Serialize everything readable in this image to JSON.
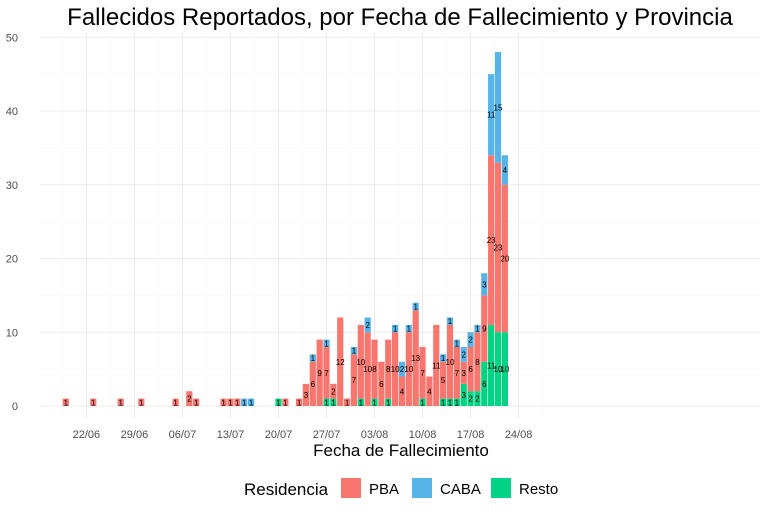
{
  "chart_data": {
    "type": "bar",
    "stacked": true,
    "title": "Fallecidos Reportados, por Fecha de Fallecimiento y Provincia",
    "xlabel": "Fecha de Fallecimiento",
    "ylabel": "",
    "ylim": [
      0,
      50
    ],
    "yticks": [
      "0",
      "10",
      "20",
      "30",
      "40",
      "50"
    ],
    "xticks": [
      {
        "day": 4,
        "label": "22/06"
      },
      {
        "day": 11,
        "label": "29/06"
      },
      {
        "day": 18,
        "label": "06/07"
      },
      {
        "day": 25,
        "label": "13/07"
      },
      {
        "day": 32,
        "label": "20/07"
      },
      {
        "day": 39,
        "label": "27/07"
      },
      {
        "day": 46,
        "label": "03/08"
      },
      {
        "day": 53,
        "label": "10/08"
      },
      {
        "day": 60,
        "label": "17/08"
      },
      {
        "day": 67,
        "label": "24/08"
      }
    ],
    "grid": true,
    "legend": {
      "title": "Residencia",
      "position": "bottom"
    },
    "series": [
      {
        "name": "PBA",
        "color": "#F8766D"
      },
      {
        "name": "CABA",
        "color": "#56B4E9"
      },
      {
        "name": "Resto",
        "color": "#00D384"
      }
    ],
    "bars": [
      {
        "day": 1,
        "PBA": 1,
        "CABA": 0,
        "Resto": 0
      },
      {
        "day": 5,
        "PBA": 1,
        "CABA": 0,
        "Resto": 0
      },
      {
        "day": 9,
        "PBA": 1,
        "CABA": 0,
        "Resto": 0
      },
      {
        "day": 12,
        "PBA": 1,
        "CABA": 0,
        "Resto": 0
      },
      {
        "day": 17,
        "PBA": 1,
        "CABA": 0,
        "Resto": 0
      },
      {
        "day": 19,
        "PBA": 2,
        "CABA": 0,
        "Resto": 0
      },
      {
        "day": 20,
        "PBA": 1,
        "CABA": 0,
        "Resto": 0
      },
      {
        "day": 24,
        "PBA": 1,
        "CABA": 0,
        "Resto": 0
      },
      {
        "day": 25,
        "PBA": 1,
        "CABA": 0,
        "Resto": 0
      },
      {
        "day": 26,
        "PBA": 1,
        "CABA": 0,
        "Resto": 0
      },
      {
        "day": 27,
        "PBA": 0,
        "CABA": 1,
        "Resto": 0
      },
      {
        "day": 28,
        "PBA": 0,
        "CABA": 1,
        "Resto": 0
      },
      {
        "day": 32,
        "PBA": 0,
        "CABA": 0,
        "Resto": 1
      },
      {
        "day": 33,
        "PBA": 1,
        "CABA": 0,
        "Resto": 0
      },
      {
        "day": 35,
        "PBA": 1,
        "CABA": 0,
        "Resto": 0
      },
      {
        "day": 36,
        "PBA": 3,
        "CABA": 0,
        "Resto": 0
      },
      {
        "day": 37,
        "PBA": 6,
        "CABA": 1,
        "Resto": 0
      },
      {
        "day": 38,
        "PBA": 9,
        "CABA": 0,
        "Resto": 0
      },
      {
        "day": 39,
        "PBA": 7,
        "CABA": 1,
        "Resto": 1
      },
      {
        "day": 40,
        "PBA": 2,
        "CABA": 0,
        "Resto": 1
      },
      {
        "day": 41,
        "PBA": 12,
        "CABA": 0,
        "Resto": 0
      },
      {
        "day": 42,
        "PBA": 1,
        "CABA": 0,
        "Resto": 0
      },
      {
        "day": 43,
        "PBA": 7,
        "CABA": 1,
        "Resto": 0
      },
      {
        "day": 44,
        "PBA": 10,
        "CABA": 0,
        "Resto": 1
      },
      {
        "day": 45,
        "PBA": 10,
        "CABA": 2,
        "Resto": 0
      },
      {
        "day": 46,
        "PBA": 8,
        "CABA": 0,
        "Resto": 1
      },
      {
        "day": 47,
        "PBA": 6,
        "CABA": 0,
        "Resto": 0
      },
      {
        "day": 48,
        "PBA": 8,
        "CABA": 0,
        "Resto": 1
      },
      {
        "day": 49,
        "PBA": 10,
        "CABA": 1,
        "Resto": 0
      },
      {
        "day": 50,
        "PBA": 4,
        "CABA": 2,
        "Resto": 0
      },
      {
        "day": 51,
        "PBA": 10,
        "CABA": 1,
        "Resto": 0
      },
      {
        "day": 52,
        "PBA": 13,
        "CABA": 1,
        "Resto": 0
      },
      {
        "day": 53,
        "PBA": 7,
        "CABA": 0,
        "Resto": 1
      },
      {
        "day": 54,
        "PBA": 4,
        "CABA": 0,
        "Resto": 0
      },
      {
        "day": 55,
        "PBA": 11,
        "CABA": 0,
        "Resto": 0
      },
      {
        "day": 56,
        "PBA": 5,
        "CABA": 1,
        "Resto": 1
      },
      {
        "day": 57,
        "PBA": 10,
        "CABA": 1,
        "Resto": 1
      },
      {
        "day": 58,
        "PBA": 7,
        "CABA": 1,
        "Resto": 1
      },
      {
        "day": 59,
        "PBA": 3,
        "CABA": 2,
        "Resto": 3
      },
      {
        "day": 60,
        "PBA": 6,
        "CABA": 2,
        "Resto": 2
      },
      {
        "day": 61,
        "PBA": 8,
        "CABA": 1,
        "Resto": 2
      },
      {
        "day": 62,
        "PBA": 9,
        "CABA": 3,
        "Resto": 6
      },
      {
        "day": 63,
        "PBA": 23,
        "CABA": 11,
        "Resto": 11
      },
      {
        "day": 64,
        "PBA": 23,
        "CABA": 15,
        "Resto": 10
      },
      {
        "day": 65,
        "PBA": 20,
        "CABA": 4,
        "Resto": 10
      }
    ]
  }
}
